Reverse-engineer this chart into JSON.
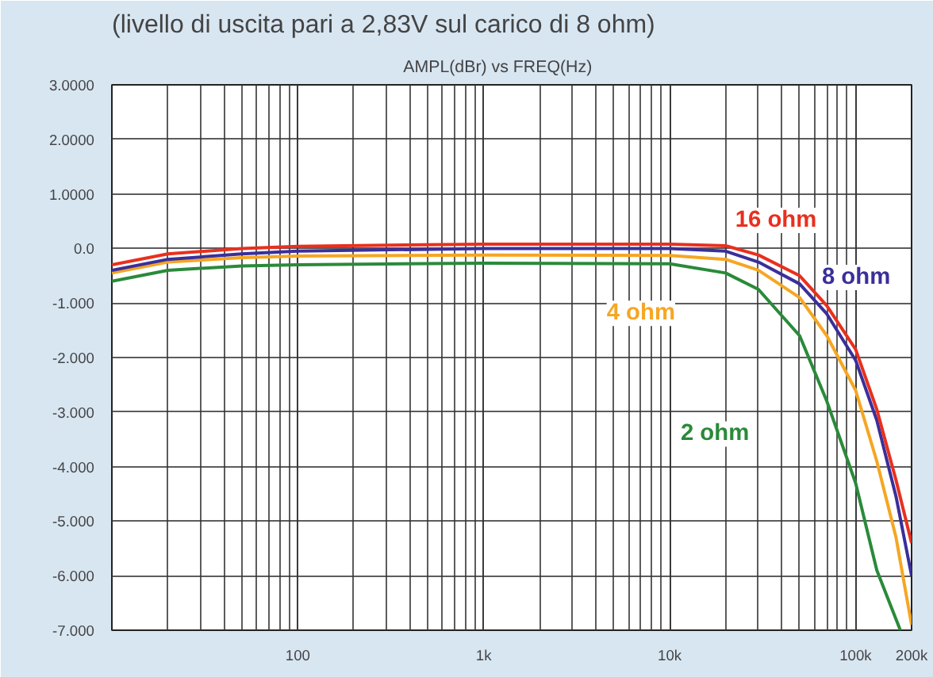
{
  "chart_data": {
    "type": "line",
    "title": "(livello di uscita pari a 2,83V sul carico di 8 ohm)",
    "subtitle": "AMPL(dBr)    vs    FREQ(Hz)",
    "log": "x",
    "grid": true,
    "line_style": "solid",
    "marker": "none",
    "x": [
      10,
      20,
      50,
      100,
      1000,
      10000,
      20000,
      30000,
      50000,
      70000,
      100000,
      130000,
      165000,
      200000
    ],
    "xlim": [
      10,
      200000
    ],
    "xticks": [
      {
        "value": 100,
        "label": "100"
      },
      {
        "value": 1000,
        "label": "1k"
      },
      {
        "value": 10000,
        "label": "10k"
      },
      {
        "value": 100000,
        "label": "100k"
      },
      {
        "value": 200000,
        "label": "200k"
      }
    ],
    "ylim": [
      -7,
      3
    ],
    "yticks": [
      {
        "value": 3,
        "label": "3.0000"
      },
      {
        "value": 2,
        "label": "2.0000"
      },
      {
        "value": 1,
        "label": "1.0000"
      },
      {
        "value": 0,
        "label": "0.0"
      },
      {
        "value": -1,
        "label": "-1.000"
      },
      {
        "value": -2,
        "label": "-2.000"
      },
      {
        "value": -3,
        "label": "-3.000"
      },
      {
        "value": -4,
        "label": "-4.000"
      },
      {
        "value": -5,
        "label": "-5.000"
      },
      {
        "value": -6,
        "label": "-6.000"
      },
      {
        "value": -7,
        "label": "-7.000"
      }
    ],
    "series": [
      {
        "name": "16 ohm",
        "color": "#e8301f",
        "values": [
          -0.3,
          -0.1,
          0.0,
          0.04,
          0.08,
          0.08,
          0.05,
          -0.12,
          -0.5,
          -1.05,
          -1.85,
          -2.95,
          -4.25,
          -5.4
        ]
      },
      {
        "name": "8 ohm",
        "color": "#3a2f9a",
        "values": [
          -0.4,
          -0.2,
          -0.1,
          -0.05,
          0.0,
          0.0,
          -0.05,
          -0.25,
          -0.65,
          -1.2,
          -2.05,
          -3.15,
          -4.55,
          -6.0
        ]
      },
      {
        "name": "4 ohm",
        "color": "#f5a623",
        "values": [
          -0.45,
          -0.25,
          -0.17,
          -0.14,
          -0.12,
          -0.13,
          -0.2,
          -0.4,
          -0.9,
          -1.6,
          -2.6,
          -3.9,
          -5.3,
          -6.9
        ]
      },
      {
        "name": "2 ohm",
        "color": "#2a8a3a",
        "x": [
          10,
          20,
          50,
          100,
          1000,
          10000,
          20000,
          30000,
          50000,
          70000,
          100000,
          130000,
          174000
        ],
        "values": [
          -0.6,
          -0.4,
          -0.32,
          -0.3,
          -0.27,
          -0.28,
          -0.45,
          -0.75,
          -1.6,
          -2.8,
          -4.3,
          -5.9,
          -7.0
        ]
      }
    ]
  }
}
